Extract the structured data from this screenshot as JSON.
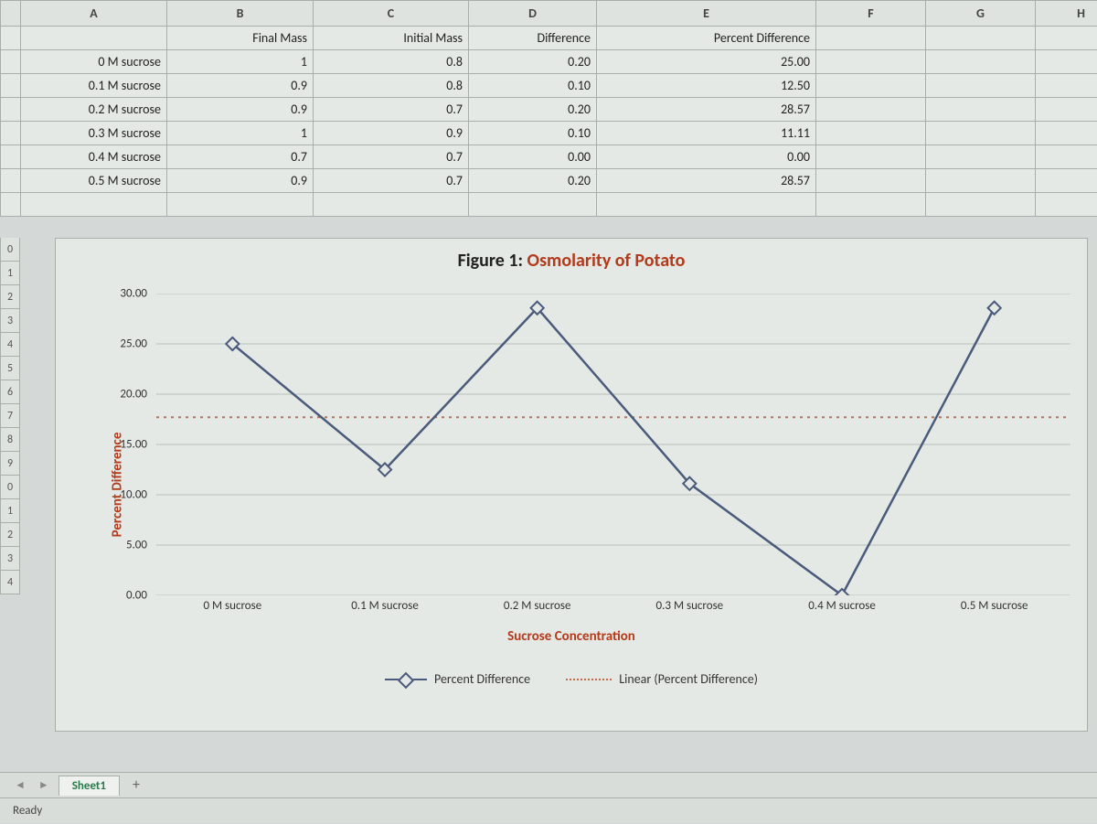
{
  "columns": [
    "A",
    "B",
    "C",
    "D",
    "E",
    "F",
    "G",
    "H"
  ],
  "headers": {
    "B": "Final Mass",
    "C": "Initial Mass",
    "D": "Difference",
    "E": "Percent Difference"
  },
  "rows": [
    {
      "label": "0 M sucrose",
      "final": "1",
      "initial": "0.8",
      "diff": "0.20",
      "pct": "25.00"
    },
    {
      "label": "0.1 M sucrose",
      "final": "0.9",
      "initial": "0.8",
      "diff": "0.10",
      "pct": "12.50"
    },
    {
      "label": "0.2 M sucrose",
      "final": "0.9",
      "initial": "0.7",
      "diff": "0.20",
      "pct": "28.57"
    },
    {
      "label": "0.3 M sucrose",
      "final": "1",
      "initial": "0.9",
      "diff": "0.10",
      "pct": "11.11"
    },
    {
      "label": "0.4 M sucrose",
      "final": "0.7",
      "initial": "0.7",
      "diff": "0.00",
      "pct": "0.00"
    },
    {
      "label": "0.5 M sucrose",
      "final": "0.9",
      "initial": "0.7",
      "diff": "0.20",
      "pct": "28.57"
    }
  ],
  "gutter_rows": [
    "0",
    "1",
    "2",
    "3",
    "4",
    "5",
    "6",
    "7",
    "8",
    "9",
    "0",
    "1",
    "2",
    "3",
    "4"
  ],
  "chart": {
    "type": "line",
    "title_prefix": "Figure 1: ",
    "title_accent": "Osmolarity of Potato",
    "y_label": "Percent Difference",
    "x_label": "Sucrose Concentration",
    "categories": [
      "0 M sucrose",
      "0.1 M sucrose",
      "0.2 M sucrose",
      "0.3 M sucrose",
      "0.4 M sucrose",
      "0.5 M sucrose"
    ],
    "values": [
      25.0,
      12.5,
      28.57,
      11.11,
      0.0,
      28.57
    ],
    "y_ticks": [
      "0.00",
      "5.00",
      "10.00",
      "15.00",
      "20.00",
      "25.00",
      "30.00"
    ],
    "ylim": [
      0,
      30
    ],
    "series_color": "#4a5a7a",
    "marker_fill": "#e5e9e6",
    "marker_stroke": "#4a5a7a",
    "trend_color": "#c96a4a",
    "trend_y": 17.7,
    "grid_color": "#b8beb8",
    "background_color": "#e5e9e6",
    "accent_text_color": "#b33a1a",
    "legend": {
      "series": "Percent Difference",
      "trend": "Linear (Percent Difference)"
    }
  },
  "tabs": {
    "active": "Sheet1",
    "add": "+"
  },
  "status": "Ready"
}
